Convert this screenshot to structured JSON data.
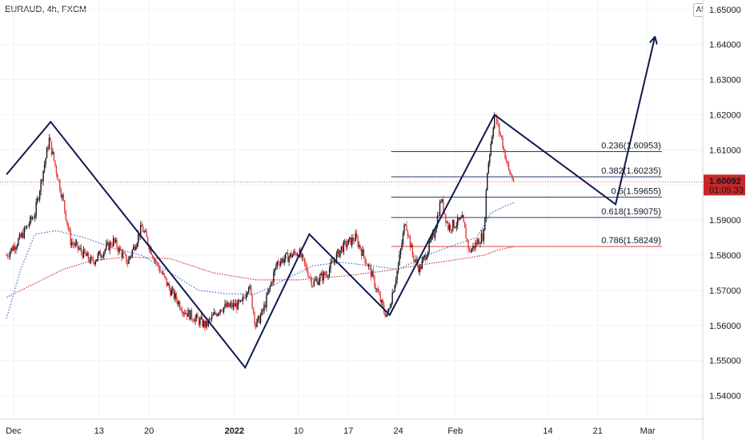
{
  "header": {
    "symbol": "EURAUD, 4h, FXCM",
    "currency": "AUD"
  },
  "colors": {
    "up": "#131722",
    "down": "#e03b3b",
    "ma_fast": "#4a74c9",
    "ma_slow": "#d64545",
    "fib": "#2a3a6b",
    "fib_786": "#d64545",
    "zigzag": "#101a4f",
    "price_badge": "#c62828"
  },
  "chart_data": {
    "type": "candlestick",
    "title": "EURAUD, 4h, FXCM",
    "ylim": [
      1.5333,
      1.6527
    ],
    "y_ticks": [
      {
        "value": 1.54,
        "label": "1.54000"
      },
      {
        "value": 1.55,
        "label": "1.55000"
      },
      {
        "value": 1.56,
        "label": "1.56000"
      },
      {
        "value": 1.57,
        "label": "1.57000"
      },
      {
        "value": 1.58,
        "label": "1.58000"
      },
      {
        "value": 1.59,
        "label": "1.59000"
      },
      {
        "value": 1.6,
        "label": "1.60000"
      },
      {
        "value": 1.61,
        "label": "1.61000"
      },
      {
        "value": 1.62,
        "label": "1.62000"
      },
      {
        "value": 1.63,
        "label": "1.63000"
      },
      {
        "value": 1.64,
        "label": "1.64000"
      },
      {
        "value": 1.65,
        "label": "1.65000"
      }
    ],
    "x_ticks": [
      {
        "day": 0,
        "label": "Dec",
        "bold": false
      },
      {
        "day": 12,
        "label": "13",
        "bold": false
      },
      {
        "day": 19,
        "label": "20",
        "bold": false
      },
      {
        "day": 31,
        "label": "2022",
        "bold": true
      },
      {
        "day": 40,
        "label": "10",
        "bold": false
      },
      {
        "day": 47,
        "label": "17",
        "bold": false
      },
      {
        "day": 54,
        "label": "24",
        "bold": false
      },
      {
        "day": 62,
        "label": "Feb",
        "bold": false
      },
      {
        "day": 75,
        "label": "14",
        "bold": false
      },
      {
        "day": 82,
        "label": "21",
        "bold": false
      },
      {
        "day": 89,
        "label": "Mar",
        "bold": false
      }
    ],
    "price_path": [
      [
        -1,
        1.58
      ],
      [
        1,
        1.585
      ],
      [
        3,
        1.592
      ],
      [
        5,
        1.613
      ],
      [
        7,
        1.595
      ],
      [
        8,
        1.584
      ],
      [
        11,
        1.578
      ],
      [
        14,
        1.584
      ],
      [
        16,
        1.578
      ],
      [
        18,
        1.588
      ],
      [
        20,
        1.578
      ],
      [
        22,
        1.57
      ],
      [
        24,
        1.564
      ],
      [
        27,
        1.56
      ],
      [
        29,
        1.565
      ],
      [
        32,
        1.566
      ],
      [
        33,
        1.572
      ],
      [
        34,
        1.56
      ],
      [
        35,
        1.564
      ],
      [
        37,
        1.578
      ],
      [
        40,
        1.581
      ],
      [
        42,
        1.572
      ],
      [
        44,
        1.575
      ],
      [
        46,
        1.582
      ],
      [
        48,
        1.585
      ],
      [
        50,
        1.576
      ],
      [
        52,
        1.564
      ],
      [
        52.5,
        1.563
      ],
      [
        54,
        1.577
      ],
      [
        55,
        1.59
      ],
      [
        56,
        1.58
      ],
      [
        57,
        1.576
      ],
      [
        59,
        1.586
      ],
      [
        60,
        1.596
      ],
      [
        61,
        1.588
      ],
      [
        63,
        1.59
      ],
      [
        64,
        1.581
      ],
      [
        66,
        1.586
      ],
      [
        66.5,
        1.604
      ],
      [
        67.5,
        1.62
      ],
      [
        68.5,
        1.613
      ],
      [
        69.5,
        1.604
      ],
      [
        70.3,
        1.6009
      ]
    ],
    "ma_fast": [
      [
        -1,
        1.562
      ],
      [
        1,
        1.576
      ],
      [
        3,
        1.586
      ],
      [
        6,
        1.587
      ],
      [
        10,
        1.585
      ],
      [
        14,
        1.582
      ],
      [
        18,
        1.58
      ],
      [
        22,
        1.575
      ],
      [
        26,
        1.57
      ],
      [
        30,
        1.569
      ],
      [
        34,
        1.569
      ],
      [
        38,
        1.573
      ],
      [
        42,
        1.577
      ],
      [
        46,
        1.578
      ],
      [
        50,
        1.577
      ],
      [
        54,
        1.576
      ],
      [
        58,
        1.58
      ],
      [
        62,
        1.583
      ],
      [
        65,
        1.585
      ],
      [
        67,
        1.592
      ],
      [
        69,
        1.594
      ],
      [
        70.3,
        1.595
      ]
    ],
    "ma_slow": [
      [
        -1,
        1.568
      ],
      [
        3,
        1.572
      ],
      [
        7,
        1.576
      ],
      [
        11,
        1.5785
      ],
      [
        16,
        1.5795
      ],
      [
        22,
        1.579
      ],
      [
        28,
        1.575
      ],
      [
        34,
        1.573
      ],
      [
        40,
        1.573
      ],
      [
        46,
        1.574
      ],
      [
        52,
        1.5755
      ],
      [
        58,
        1.5775
      ],
      [
        63,
        1.579
      ],
      [
        66,
        1.58
      ],
      [
        68,
        1.5815
      ],
      [
        70.3,
        1.5825
      ]
    ],
    "fib_levels": [
      {
        "ratio": "0.236",
        "price": "1.60953",
        "value": 1.60953
      },
      {
        "ratio": "0.382",
        "price": "1.60235",
        "value": 1.60235
      },
      {
        "ratio": "0.5",
        "price": "1.59655",
        "value": 1.59655
      },
      {
        "ratio": "0.618",
        "price": "1.59075",
        "value": 1.59075
      },
      {
        "ratio": "0.786",
        "price": "1.58249",
        "value": 1.58249
      }
    ],
    "fib_range_days": [
      53,
      91
    ],
    "zigzag": [
      [
        -1,
        1.603
      ],
      [
        5.2,
        1.618
      ],
      [
        32.5,
        1.548
      ],
      [
        41.5,
        1.586
      ],
      [
        52.8,
        1.563
      ],
      [
        67.5,
        1.62
      ],
      [
        84.5,
        1.5945
      ],
      [
        90,
        1.642
      ]
    ],
    "last_price": {
      "value": 1.60092,
      "label": "1.60092",
      "countdown": "01:05:33"
    }
  }
}
